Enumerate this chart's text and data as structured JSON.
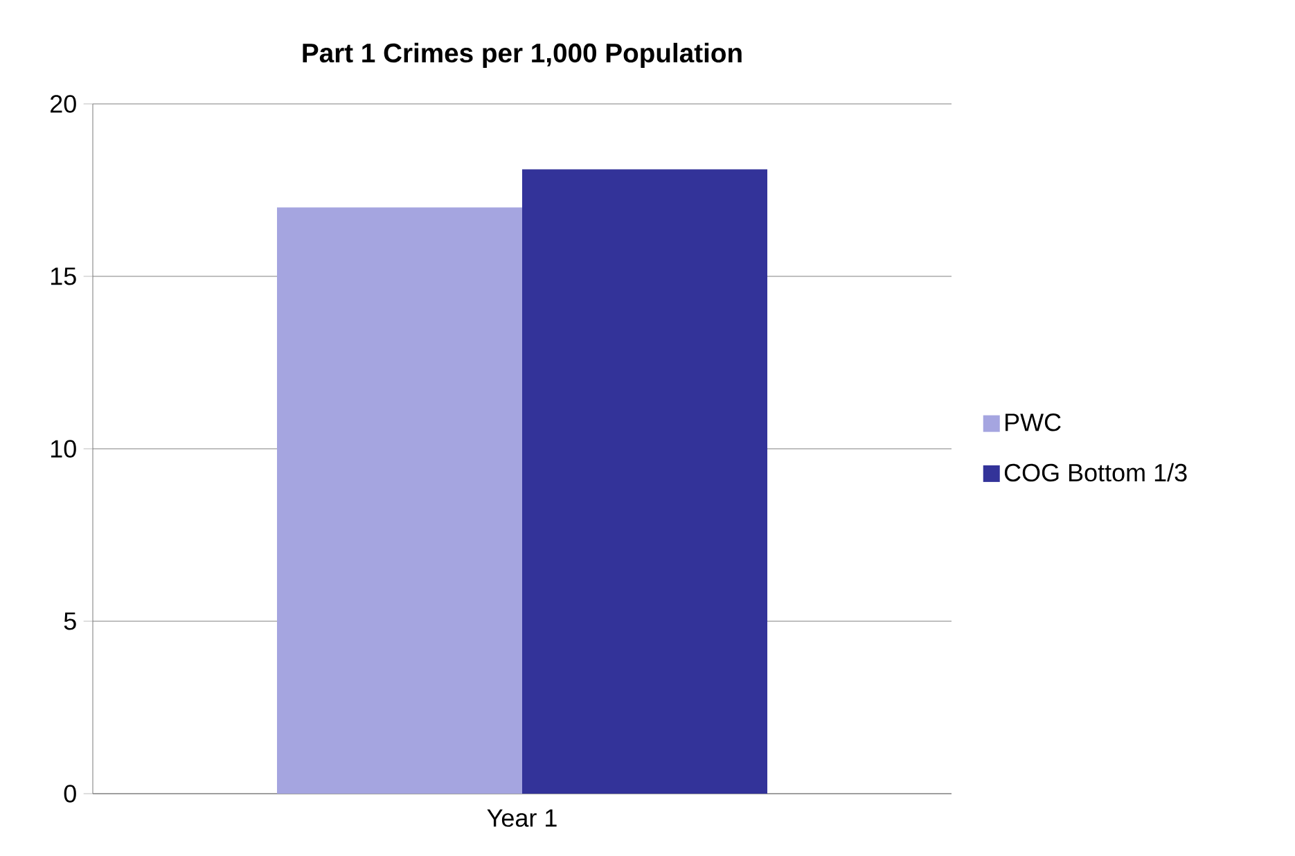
{
  "chart_data": {
    "type": "bar",
    "title": "Part 1 Crimes per 1,000 Population",
    "categories": [
      "Year 1"
    ],
    "series": [
      {
        "name": "PWC",
        "color": "#a5a5e0",
        "values": [
          17.0
        ]
      },
      {
        "name": "COG Bottom 1/3",
        "color": "#333399",
        "values": [
          18.1
        ]
      }
    ],
    "ylim": [
      0,
      20
    ],
    "yticks": [
      0,
      5,
      10,
      15,
      20
    ],
    "grid": "y",
    "legend": "right"
  }
}
